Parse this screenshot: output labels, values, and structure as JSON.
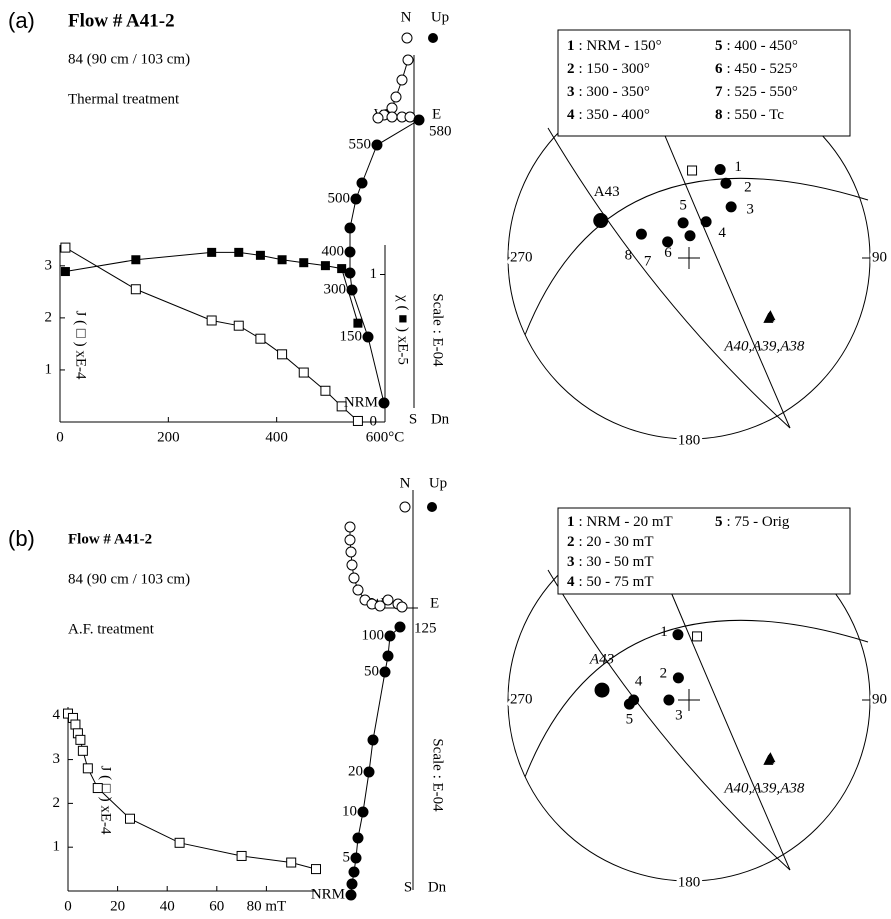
{
  "chart_data": [
    {
      "type": "line",
      "panel_label": "(a)",
      "title": "Flow # A41-2",
      "subtitle": "84 (90 cm / 103 cm)",
      "annotation": "Thermal treatment",
      "x": [
        10,
        140,
        280,
        330,
        370,
        410,
        450,
        490,
        520,
        550
      ],
      "xlim": [
        0,
        600
      ],
      "xticks": [
        0,
        200,
        400,
        {
          "value": 600,
          "label": "600°C"
        }
      ],
      "ylim": [
        0,
        3.4
      ],
      "yticks": [
        1,
        2,
        3
      ],
      "ylabel": "J ( □ ) xE-4",
      "y2lim": [
        0,
        1.2
      ],
      "y2ticks": [
        0,
        1
      ],
      "y2label": "χ ( ■ ) xE-5",
      "series": [
        {
          "marker": "open-square",
          "values": [
            3.35,
            2.55,
            1.95,
            1.85,
            1.6,
            1.3,
            0.95,
            0.6,
            0.3,
            0.02
          ]
        },
        {
          "marker": "filled-square",
          "axis": "y2",
          "values": [
            1.02,
            1.1,
            1.15,
            1.15,
            1.13,
            1.1,
            1.08,
            1.06,
            1.04,
            0.67
          ]
        }
      ]
    },
    {
      "type": "zijderveld",
      "axis_labels": {
        "north": "N",
        "up": "Up",
        "west": "W",
        "east": "E",
        "south": "S",
        "down": "Dn"
      },
      "scale_label": "Scale : E-04",
      "series": [
        {
          "marker": "open-circle",
          "x": [
            -0.6,
            -1.2,
            -1.8,
            -2.2,
            -3.0,
            -3.6,
            -2.2,
            -1.2,
            -0.4
          ],
          "y": [
            5.8,
            3.8,
            2.1,
            1.0,
            0.3,
            0,
            0.1,
            0.1,
            0.1
          ]
        },
        {
          "marker": "filled-circle",
          "x": [
            0.5,
            -3.7,
            -5.2,
            -5.8,
            -6.4,
            -6.4,
            -6.4,
            -6.2,
            -4.6,
            -3.0
          ],
          "y": [
            -0.2,
            -2.7,
            -6.5,
            -8.1,
            -11.0,
            -13.4,
            -15.5,
            -17.2,
            -21.9,
            -28.5
          ],
          "labels": [
            "580",
            "550",
            null,
            "500",
            null,
            "400",
            null,
            "300",
            "150",
            "NRM"
          ]
        }
      ]
    },
    {
      "type": "stereonet",
      "azimuth_labels": {
        "west": "270",
        "east": "90",
        "south": "180"
      },
      "legend": [
        {
          "key": "1",
          "text": ": NRM - 150°"
        },
        {
          "key": "2",
          "text": ": 150 - 300°"
        },
        {
          "key": "3",
          "text": ": 300 - 350°"
        },
        {
          "key": "4",
          "text": ": 350 - 400°"
        },
        {
          "key": "5",
          "text": ": 400 - 450°"
        },
        {
          "key": "6",
          "text": ": 450 - 525°"
        },
        {
          "key": "7",
          "text": ": 525 - 550°"
        },
        {
          "key": "8",
          "text": ": 550 - Tc"
        }
      ],
      "series": [
        {
          "marker": "filled-circle",
          "dec": [
            19.4,
            26.3,
            39.5,
            25.3,
            350.5,
            2.6,
            307,
            296.6
          ],
          "inc": [
            47,
            52,
            60,
            72,
            74,
            80,
            78,
            66
          ],
          "labels": [
            "1",
            "2",
            "3",
            "4",
            "5",
            "6",
            "7",
            "8"
          ]
        },
        {
          "marker": "large-filled-circle",
          "dec": [
            293
          ],
          "inc": [
            46
          ],
          "labels": [
            "A43"
          ]
        },
        {
          "marker": "filled-triangle",
          "dec": [
            125.5,
            126.5,
            127.5
          ],
          "inc": [
            44,
            44,
            44
          ],
          "labels": [
            null,
            null,
            "A40,A39,A38"
          ]
        },
        {
          "marker": "open-square",
          "dec": [
            2
          ],
          "inc": [
            50
          ]
        }
      ]
    },
    {
      "type": "line",
      "panel_label": "(b)",
      "title": "Flow # A41-2",
      "subtitle": "84 (90 cm / 103 cm)",
      "annotation": "A.F. treatment",
      "x": [
        0,
        2,
        3,
        4,
        5,
        6,
        8,
        12,
        25,
        45,
        70,
        90,
        100
      ],
      "xlim": [
        0,
        100
      ],
      "xticks": [
        0,
        20,
        40,
        60,
        {
          "value": 80,
          "label": "80 mT"
        }
      ],
      "ylim": [
        0,
        4.2
      ],
      "yticks": [
        1,
        2,
        3,
        4
      ],
      "ylabel": "J ( □ ) xE-4",
      "series": [
        {
          "marker": "open-square",
          "values": [
            4.05,
            3.95,
            3.8,
            3.6,
            3.45,
            3.2,
            2.8,
            2.35,
            1.65,
            1.1,
            0.8,
            0.65,
            0.5
          ]
        }
      ]
    },
    {
      "type": "zijderveld",
      "axis_labels": {
        "north": "N",
        "up": "Up",
        "west": "W",
        "east": "E",
        "south": "S",
        "down": "Dn"
      },
      "scale_label": "Scale : E-04",
      "series": [
        {
          "marker": "open-circle",
          "x": [
            -6.3,
            -6.3,
            -6.2,
            -6.1,
            -5.9,
            -5.5,
            -4.8,
            -4.1,
            -3.3,
            -2.5,
            -1.5,
            -1.1
          ],
          "y": [
            8.1,
            6.8,
            5.6,
            4.3,
            3.0,
            1.8,
            0.8,
            0.4,
            0.2,
            0.8,
            0.4,
            0.1
          ]
        },
        {
          "marker": "filled-circle",
          "x": [
            -1.3,
            -2.3,
            -2.5,
            -2.8,
            -4.0,
            -4.4,
            -5.0,
            -5.5,
            -5.7,
            -5.9,
            -6.1,
            -6.2
          ],
          "y": [
            -1.9,
            -2.8,
            -4.8,
            -6.4,
            -13.2,
            -16.4,
            -20.4,
            -23.0,
            -25.0,
            -26.4,
            -27.6,
            -28.7
          ],
          "labels": [
            "125",
            "100",
            null,
            "50",
            null,
            "20",
            "10",
            null,
            "5",
            null,
            null,
            "NRM"
          ]
        }
      ]
    },
    {
      "type": "stereonet",
      "azimuth_labels": {
        "west": "270",
        "east": "90",
        "south": "180"
      },
      "legend": [
        {
          "key": "1",
          "text": ": NRM - 20 mT"
        },
        {
          "key": "2",
          "text": ": 20 - 30 mT"
        },
        {
          "key": "3",
          "text": ": 30 - 50 mT"
        },
        {
          "key": "4",
          "text": ": 50 - 75 mT"
        },
        {
          "key": "5",
          "text": ": 75 - Orig"
        }
      ],
      "series": [
        {
          "marker": "filled-circle",
          "dec": [
            350.4,
            334.4,
            270,
            270,
            266
          ],
          "inc": [
            60,
            79,
            81,
            65,
            63
          ],
          "labels": [
            "1",
            "2",
            "3",
            "4",
            "5"
          ]
        },
        {
          "marker": "large-filled-circle",
          "dec": [
            276.5
          ],
          "inc": [
            50
          ],
          "labels": [
            "A43"
          ]
        },
        {
          "marker": "filled-triangle",
          "dec": [
            125.5,
            126.5,
            127.5
          ],
          "inc": [
            44,
            44,
            44
          ],
          "labels": [
            null,
            null,
            "A40,A39,A38"
          ]
        },
        {
          "marker": "open-square",
          "dec": [
            7.2
          ],
          "inc": [
            61
          ]
        }
      ]
    }
  ]
}
